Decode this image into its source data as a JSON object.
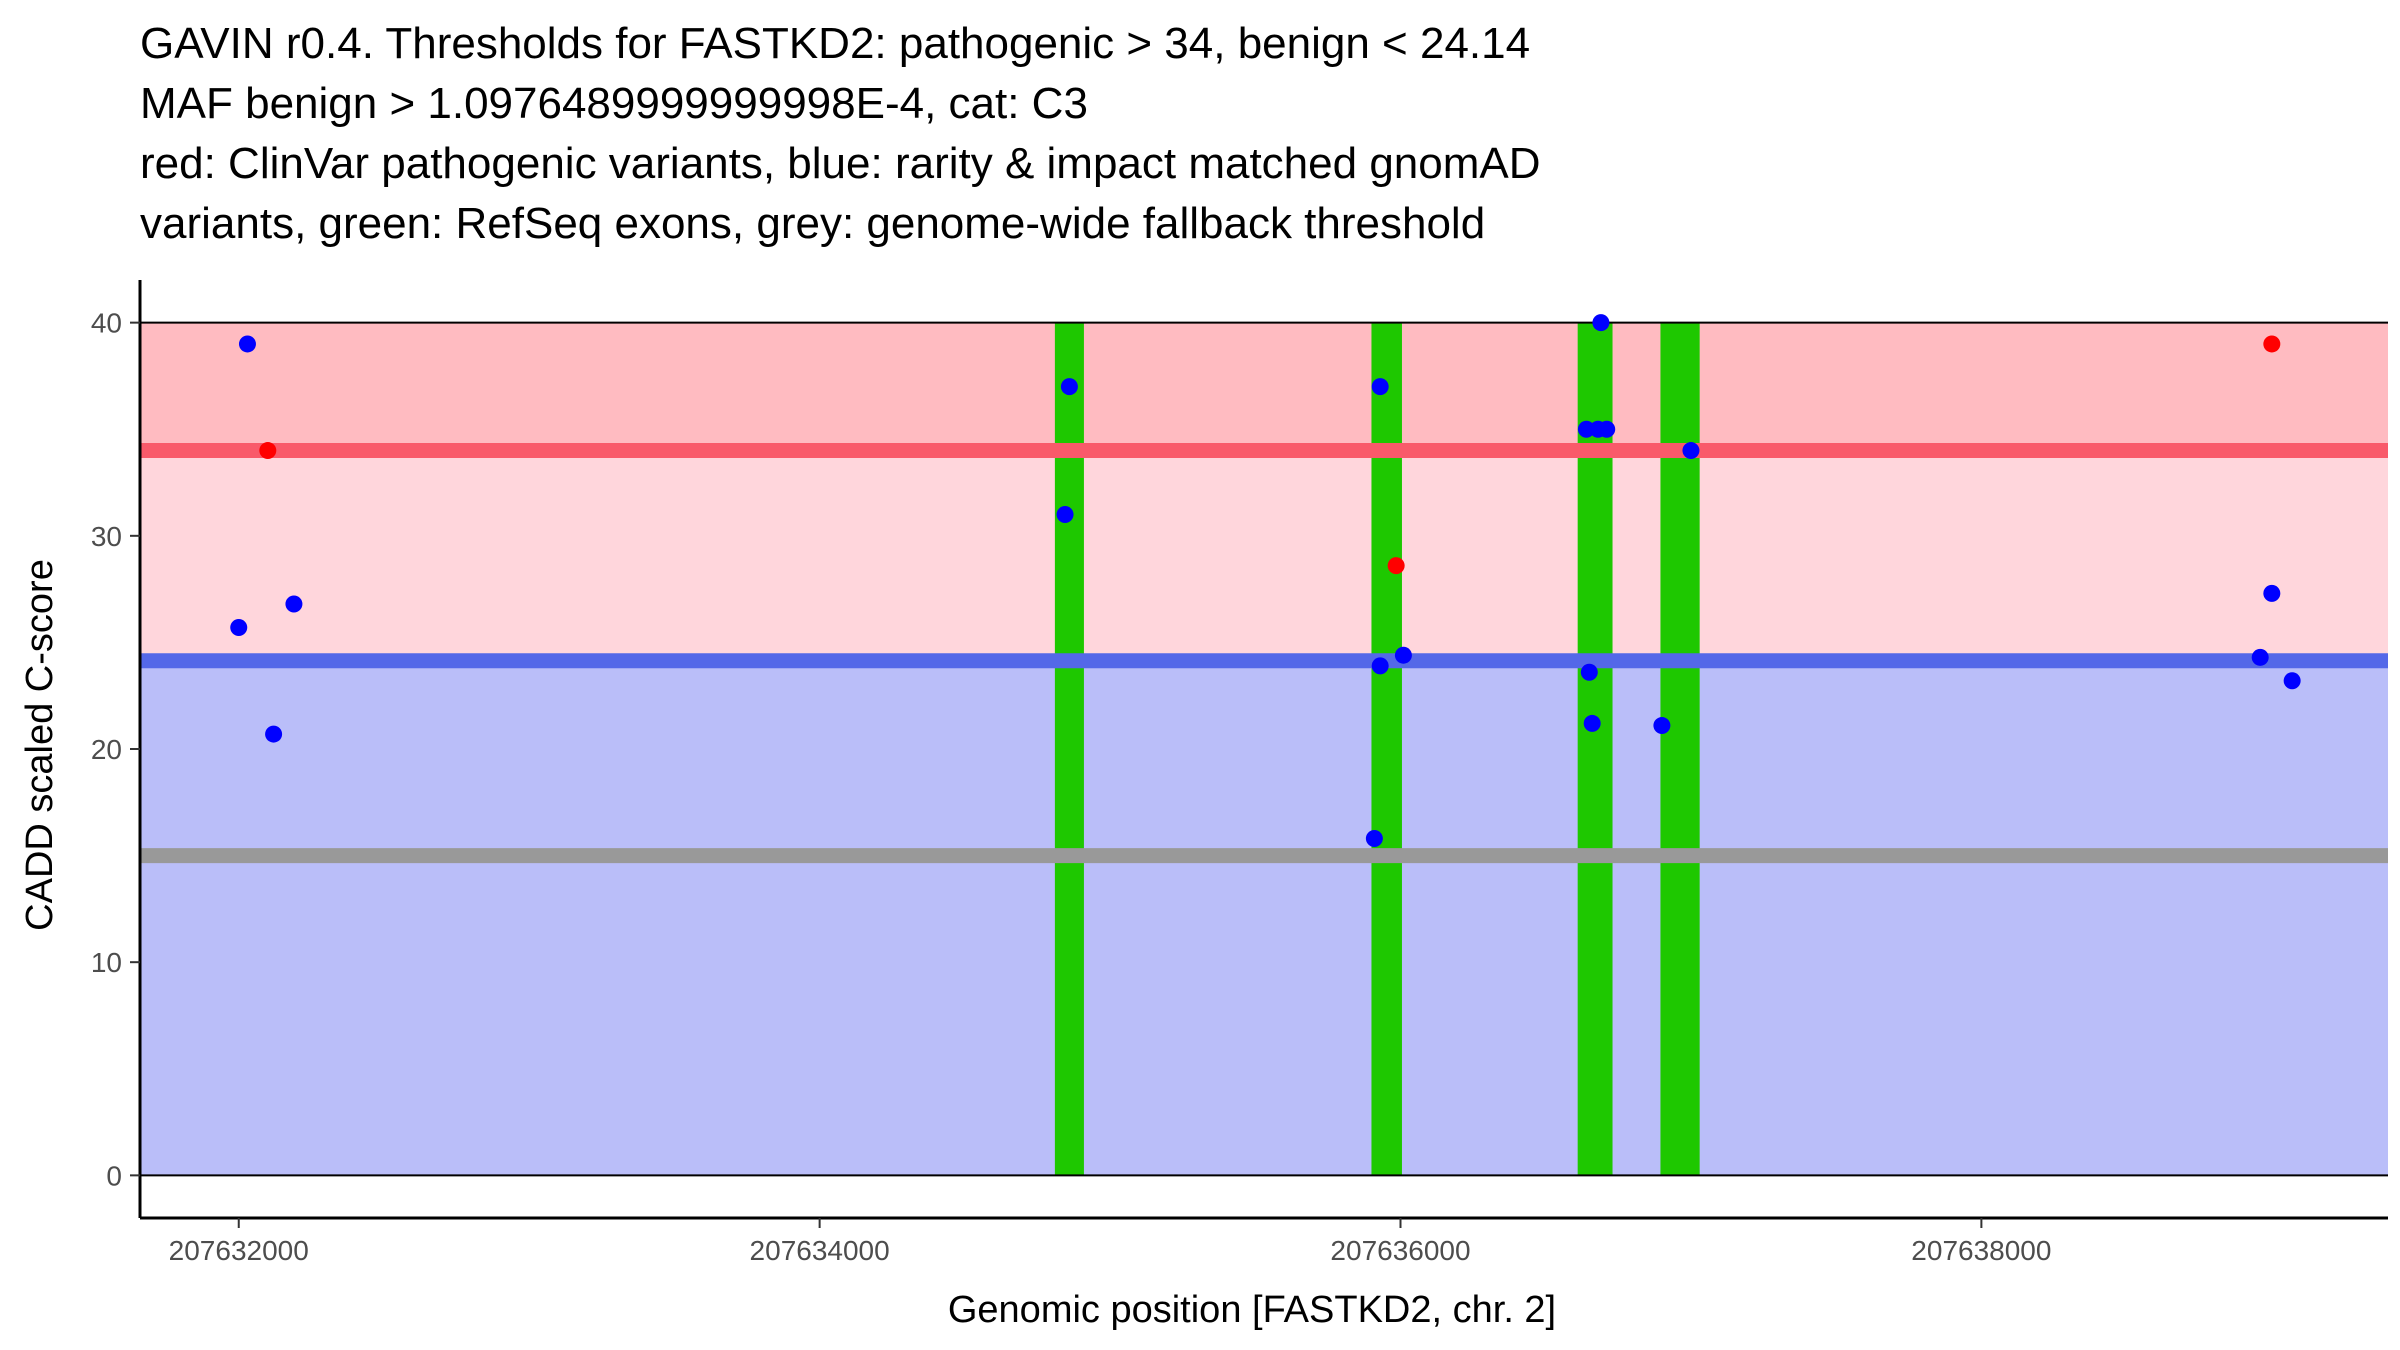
{
  "chart_data": {
    "type": "scatter",
    "title_lines": [
      "GAVIN r0.4. Thresholds for FASTKD2: pathogenic > 34, benign < 24.14",
      "MAF benign > 1.0976489999999998E-4, cat: C3",
      "red: ClinVar pathogenic variants, blue: rarity & impact matched gnomAD",
      "variants, green: RefSeq exons, grey: genome-wide fallback threshold"
    ],
    "xlabel": "Genomic position [FASTKD2, chr. 2]",
    "ylabel": "CADD scaled C-score",
    "xlim": [
      207631660,
      207639400
    ],
    "ylim": [
      -2,
      42
    ],
    "x_ticks": [
      207632000,
      207634000,
      207636000,
      207638000
    ],
    "x_tick_labels": [
      "207632000",
      "207634000",
      "207636000",
      "207638000"
    ],
    "y_ticks": [
      0,
      10,
      20,
      30,
      40
    ],
    "y_tick_labels": [
      "0",
      "10",
      "20",
      "30",
      "40"
    ],
    "x_range": [
      207631660,
      207639400
    ],
    "thresholds": {
      "pathogenic": 34,
      "benign": 24.14,
      "fallback": 15,
      "max": 40,
      "min": 0
    },
    "colors": {
      "pathogenic_band": "#ffbbc1",
      "mid_band": "#ffd6dc",
      "benign_band": "#babef9",
      "pathogenic_line": "#f95a6a",
      "benign_line": "#5468e8",
      "fallback_line": "#999999",
      "exon": "#1ec800",
      "pathogenic_point": "#ff0000",
      "population_point": "#0000ff"
    },
    "exons": [
      {
        "start": 207634810,
        "end": 207634910
      },
      {
        "start": 207635900,
        "end": 207636005
      },
      {
        "start": 207636610,
        "end": 207636730
      },
      {
        "start": 207636895,
        "end": 207637030
      }
    ],
    "series": [
      {
        "name": "ClinVar pathogenic",
        "color": "#ff0000",
        "points": [
          {
            "x": 207632100,
            "y": 34
          },
          {
            "x": 207635985,
            "y": 28.6
          },
          {
            "x": 207639000,
            "y": 39
          }
        ]
      },
      {
        "name": "gnomAD matched",
        "color": "#0000ff",
        "points": [
          {
            "x": 207632030,
            "y": 39
          },
          {
            "x": 207632000,
            "y": 25.7
          },
          {
            "x": 207632190,
            "y": 26.8
          },
          {
            "x": 207632120,
            "y": 20.7
          },
          {
            "x": 207634860,
            "y": 37
          },
          {
            "x": 207634845,
            "y": 31
          },
          {
            "x": 207635930,
            "y": 37
          },
          {
            "x": 207635930,
            "y": 23.9
          },
          {
            "x": 207636010,
            "y": 24.4
          },
          {
            "x": 207635910,
            "y": 15.8
          },
          {
            "x": 207636690,
            "y": 40
          },
          {
            "x": 207636640,
            "y": 35
          },
          {
            "x": 207636680,
            "y": 35
          },
          {
            "x": 207636710,
            "y": 35
          },
          {
            "x": 207636650,
            "y": 23.6
          },
          {
            "x": 207636660,
            "y": 21.2
          },
          {
            "x": 207636900,
            "y": 21.1
          },
          {
            "x": 207637000,
            "y": 34
          },
          {
            "x": 207638960,
            "y": 24.3
          },
          {
            "x": 207639000,
            "y": 27.3
          },
          {
            "x": 207639070,
            "y": 23.2
          }
        ]
      }
    ]
  }
}
